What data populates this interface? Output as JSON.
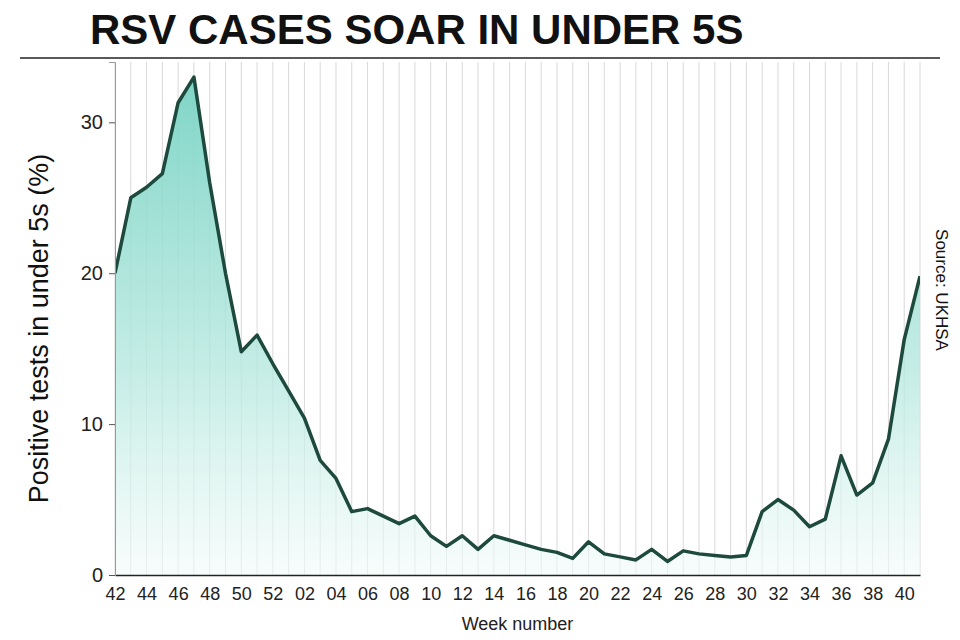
{
  "chart_data": {
    "type": "area",
    "title": "RSV CASES SOAR IN UNDER 5S",
    "x_label": "Week number",
    "y_label": "Positive tests in under 5s (%)",
    "source": "Source: UKHSA",
    "categories": [
      "42",
      null,
      "44",
      null,
      "46",
      null,
      "48",
      null,
      "50",
      null,
      "52",
      null,
      "02",
      null,
      "04",
      null,
      "06",
      null,
      "08",
      null,
      "10",
      null,
      "12",
      null,
      "14",
      null,
      "16",
      null,
      "18",
      null,
      "20",
      null,
      "22",
      null,
      "24",
      null,
      "26",
      null,
      "28",
      null,
      "30",
      null,
      "32",
      null,
      "34",
      null,
      "36",
      null,
      "38",
      null,
      "40",
      null
    ],
    "values": [
      20,
      25,
      25.7,
      26.6,
      31.3,
      33,
      26,
      20,
      14.8,
      15.9,
      14,
      12.2,
      10.4,
      7.6,
      6.4,
      4.2,
      4.4,
      3.9,
      3.4,
      3.9,
      2.6,
      1.9,
      2.6,
      1.7,
      2.6,
      2.3,
      2,
      1.7,
      1.5,
      1.1,
      2.2,
      1.4,
      1.2,
      1,
      1.7,
      0.9,
      1.6,
      1.4,
      1.3,
      1.2,
      1.3,
      4.2,
      5,
      4.3,
      3.2,
      3.7,
      7.9,
      5.3,
      6.1,
      9,
      15.6,
      19.8
    ],
    "color": "#1d4a3d",
    "ylim": [
      0,
      34
    ],
    "yticks": [
      0,
      10,
      20,
      30
    ],
    "grid": true
  }
}
